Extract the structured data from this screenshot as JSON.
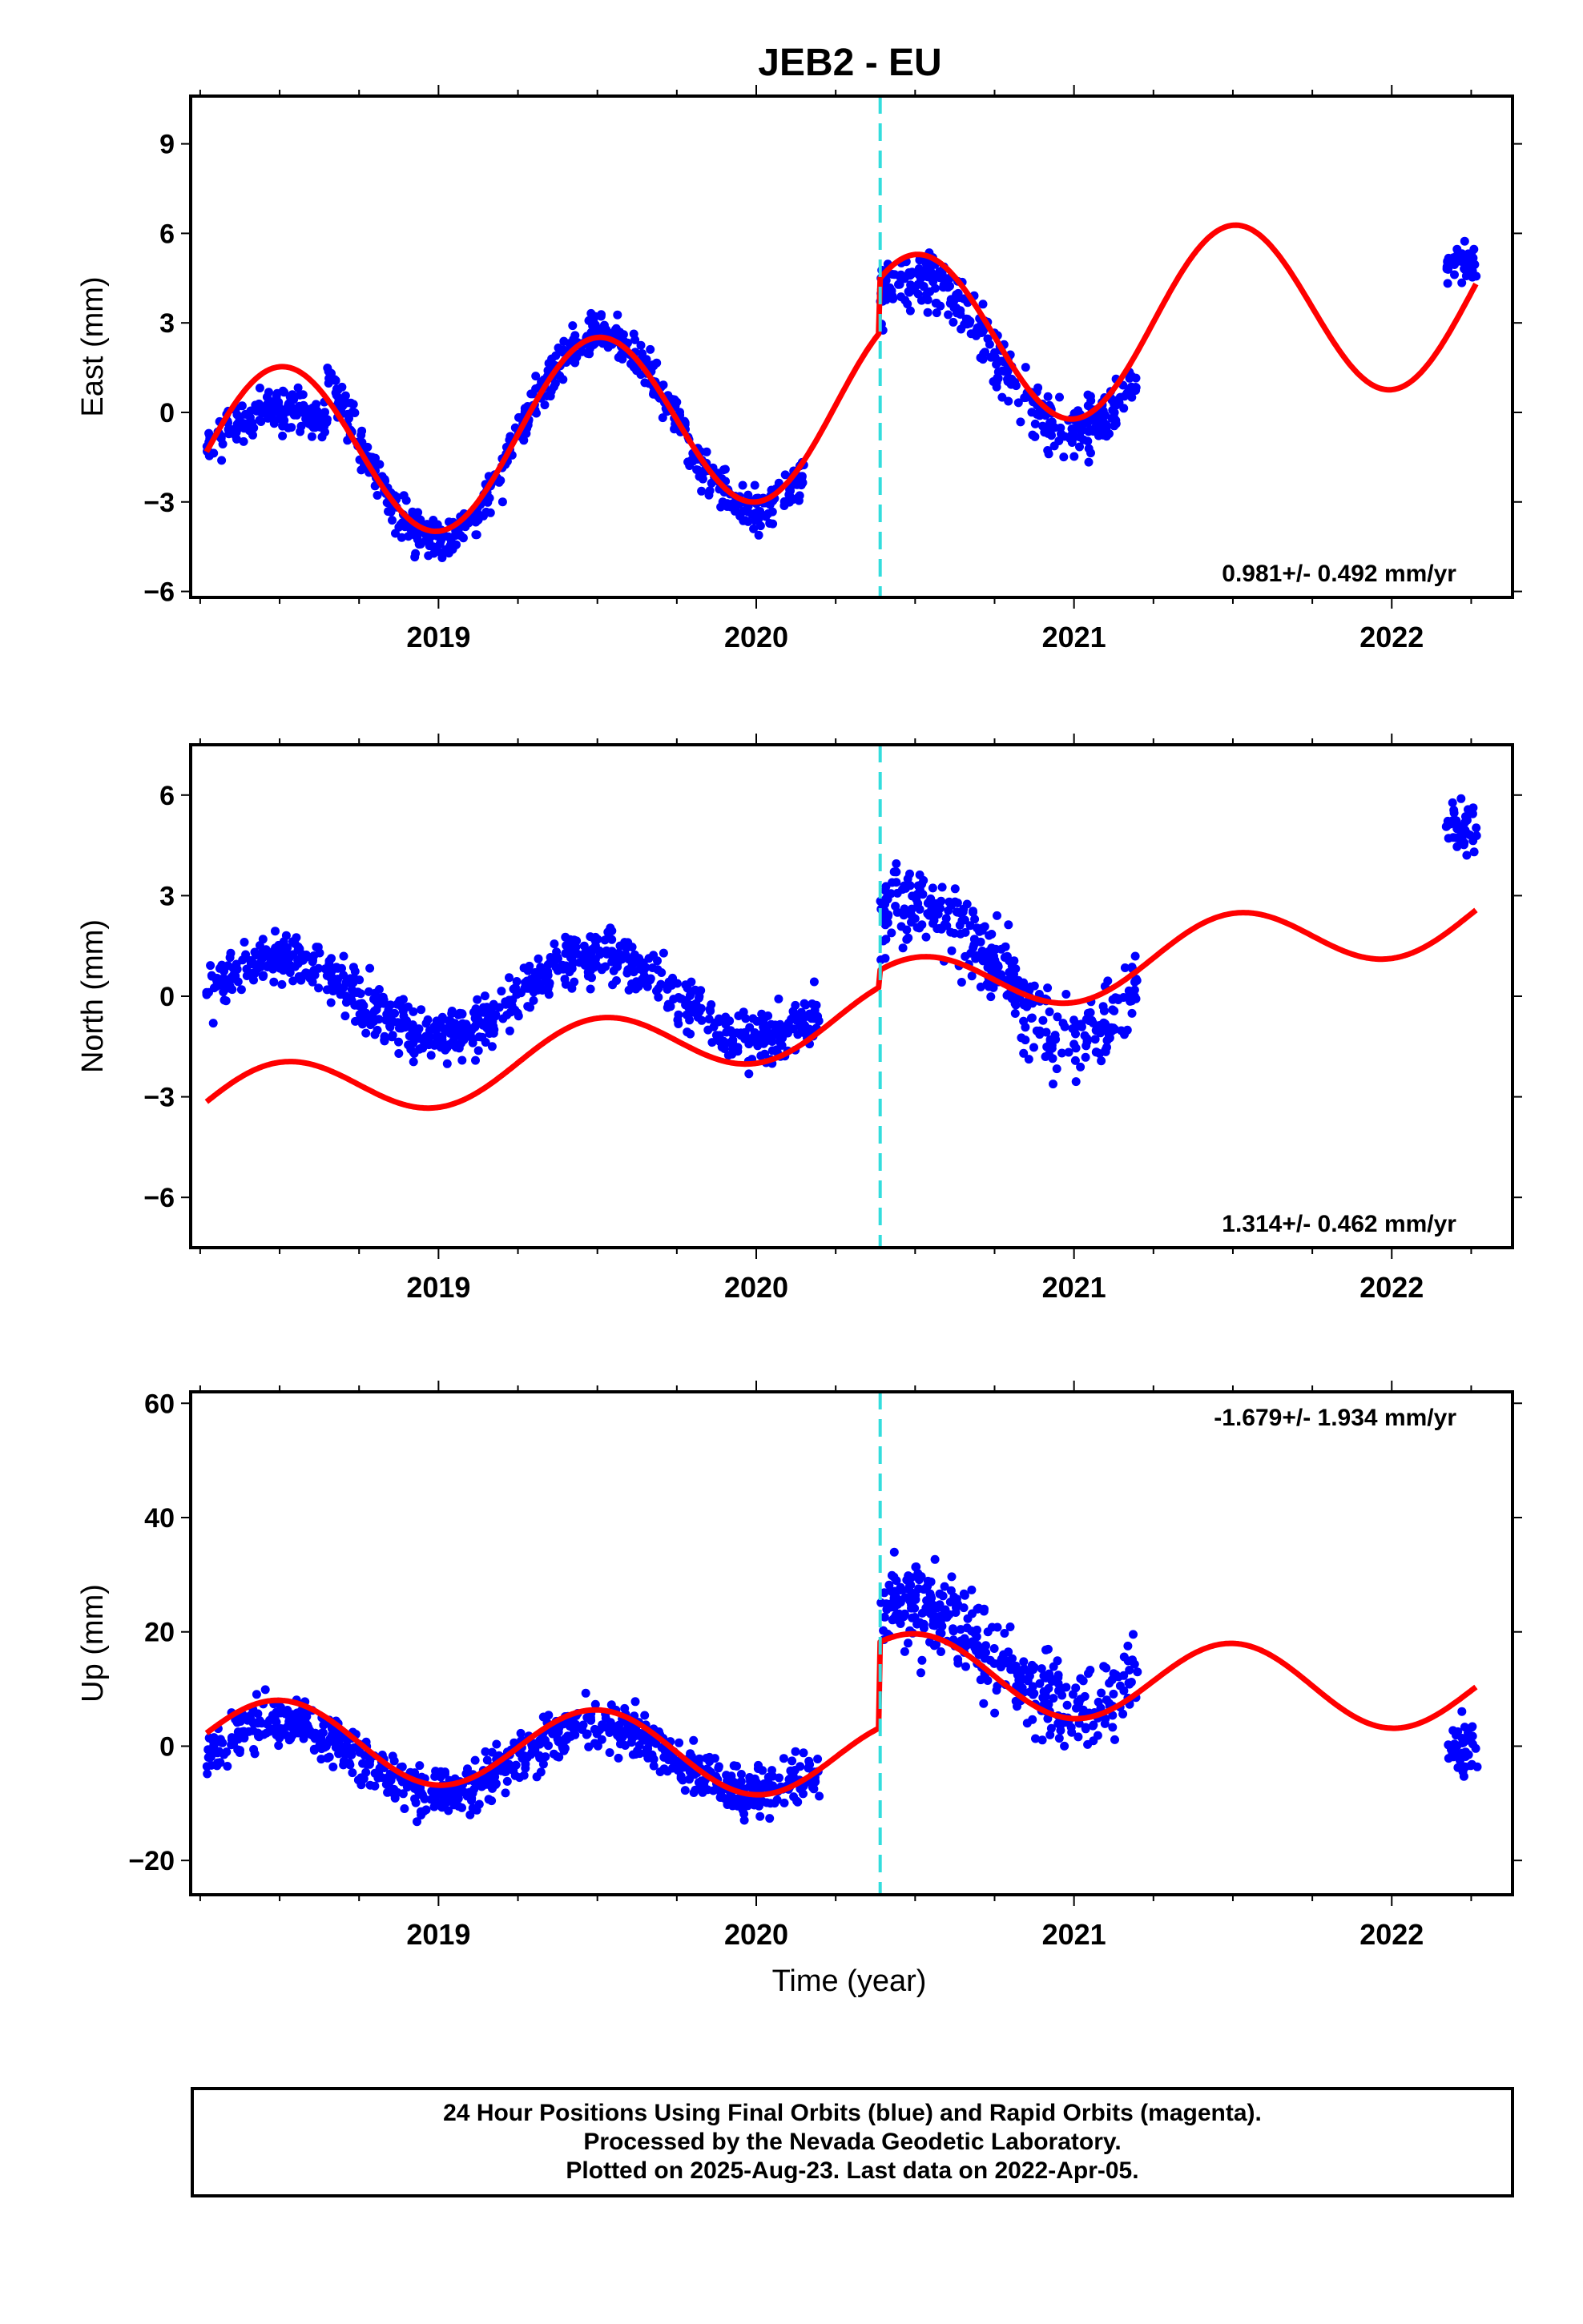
{
  "title": "JEB2 - EU",
  "x_label": "Time (year)",
  "colors": {
    "data": "#0000ff",
    "model": "#ff0000",
    "break_line": "#33dddd",
    "frame": "#000000"
  },
  "footer": {
    "line1": "24 Hour Positions Using Final Orbits (blue) and Rapid Orbits (magenta).",
    "line2": "Processed by the Nevada Geodetic Laboratory.",
    "line3": "Plotted on 2025-Aug-23. Last data on 2022-Apr-05."
  },
  "chart_data": [
    {
      "type": "scatter",
      "name": "east",
      "ylabel": "East (mm)",
      "xlim": [
        2018.22,
        2022.38
      ],
      "ylim": [
        -6.2,
        10.6
      ],
      "yticks": [
        -6,
        -3,
        0,
        3,
        6,
        9
      ],
      "xticks": [
        2019,
        2020,
        2021,
        2022
      ],
      "break_year": 2020.39,
      "rate_text": "0.981+/- 0.492 mm/yr",
      "rate_pos": "bottom-right",
      "grid": false,
      "data_series": [
        {
          "range": [
            2018.27,
            2018.65
          ],
          "amp": 1.7,
          "off": -1.5,
          "spread": 1.6
        },
        {
          "range": [
            2018.65,
            2019.55
          ],
          "amp": 3.5,
          "off": -0.8,
          "spread": 1.7
        },
        {
          "range": [
            2019.55,
            2020.15
          ],
          "amp": 3.0,
          "off": -0.3,
          "spread": 1.7
        },
        {
          "range": [
            2020.39,
            2021.2
          ],
          "amp": 2.5,
          "off": 2.0,
          "spread": 2.3
        },
        {
          "range": [
            2022.17,
            2022.27
          ],
          "amp": 0.0,
          "off": 5.0,
          "spread": 1.5
        }
      ],
      "model": {
        "a": 0.0,
        "rate": 0.981,
        "amp": 3.0,
        "phase": 0.0,
        "step": 1.8
      }
    },
    {
      "type": "scatter",
      "name": "north",
      "ylabel": "North (mm)",
      "xlim": [
        2018.22,
        2022.38
      ],
      "ylim": [
        -7.5,
        7.5
      ],
      "yticks": [
        -6,
        -3,
        0,
        3,
        6
      ],
      "xticks": [
        2019,
        2020,
        2021,
        2022
      ],
      "break_year": 2020.39,
      "rate_text": "1.314+/- 0.462 mm/yr",
      "rate_pos": "bottom-right",
      "grid": false,
      "data_series": [
        {
          "range": [
            2018.27,
            2020.2
          ],
          "amp": 1.2,
          "off": 0.0,
          "spread": 1.8
        },
        {
          "range": [
            2020.39,
            2021.2
          ],
          "amp": 2.0,
          "off": 0.8,
          "spread": 2.8
        },
        {
          "range": [
            2022.17,
            2022.27
          ],
          "amp": 0.0,
          "off": 5.0,
          "spread": 1.8
        }
      ],
      "model": {
        "a": -1.0,
        "rate": 1.314,
        "amp": 1.0,
        "phase": 0.0,
        "step": 0.5
      }
    },
    {
      "type": "scatter",
      "name": "up",
      "ylabel": "Up (mm)",
      "xlim": [
        2018.22,
        2022.38
      ],
      "ylim": [
        -26,
        62
      ],
      "yticks": [
        -20,
        0,
        20,
        40,
        60
      ],
      "xticks": [
        2019,
        2020,
        2021,
        2022
      ],
      "break_year": 2020.39,
      "rate_text": "-1.679+/- 1.934 mm/yr",
      "rate_pos": "top-right",
      "grid": false,
      "data_series": [
        {
          "range": [
            2018.27,
            2020.2
          ],
          "amp": 6.0,
          "off": -2.0,
          "spread": 10.0
        },
        {
          "range": [
            2020.39,
            2021.2
          ],
          "amp": 9.0,
          "off": 16.0,
          "spread": 18.0
        },
        {
          "range": [
            2022.17,
            2022.27
          ],
          "amp": 0.0,
          "off": -1.0,
          "spread": 12.0
        }
      ],
      "model": {
        "a": -1.5,
        "rate": -1.679,
        "amp": 7.0,
        "phase": 0.0,
        "step": 15.0
      }
    }
  ]
}
